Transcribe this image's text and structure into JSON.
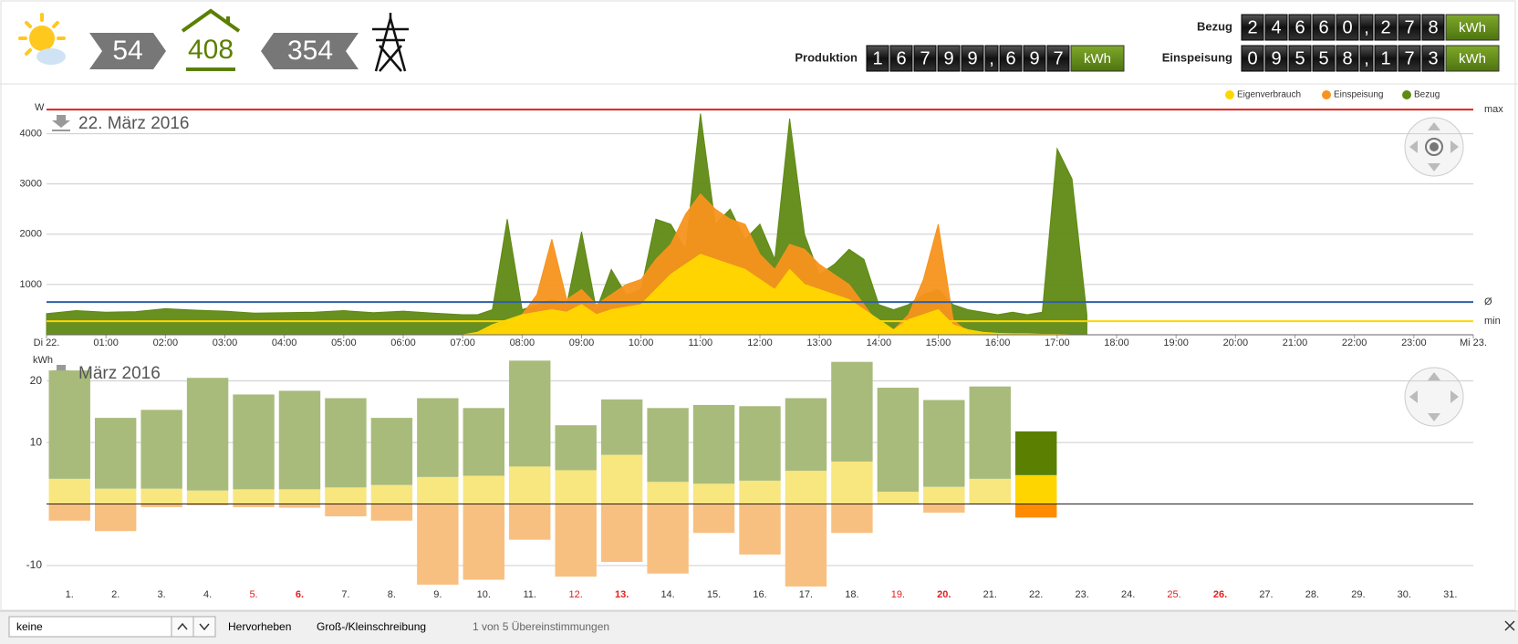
{
  "header": {
    "pv": 54,
    "consumption": 408,
    "grid": 354,
    "counters": [
      {
        "label": "Bezug",
        "digits": [
          "2",
          "4",
          "6",
          "6",
          "0",
          ",",
          "2",
          "7",
          "8"
        ],
        "unit": "kWh"
      },
      {
        "label": "Produktion",
        "digits": [
          "1",
          "6",
          "7",
          "9",
          "9",
          ",",
          "6",
          "9",
          "7"
        ],
        "unit": "kWh"
      },
      {
        "label": "Einspeisung",
        "digits": [
          "0",
          "9",
          "5",
          "5",
          "8",
          ",",
          "1",
          "7",
          "3"
        ],
        "unit": "kWh"
      }
    ]
  },
  "chart_data": [
    {
      "type": "area",
      "title": "22. März 2016",
      "y_label": "W",
      "x": [
        0,
        0.5,
        1,
        1.5,
        2,
        2.5,
        3,
        3.5,
        4,
        4.5,
        5,
        5.5,
        6,
        6.5,
        7,
        7.25,
        7.5,
        7.75,
        8,
        8.25,
        8.5,
        8.75,
        9,
        9.25,
        9.5,
        9.75,
        10,
        10.25,
        10.5,
        10.75,
        11,
        11.25,
        11.5,
        11.75,
        12,
        12.25,
        12.5,
        12.75,
        13,
        13.25,
        13.5,
        13.75,
        14,
        14.25,
        14.5,
        14.75,
        15,
        15.25,
        15.5,
        15.75,
        16,
        16.25,
        16.5,
        16.75,
        17,
        17.25,
        17.5
      ],
      "xlim": [
        0,
        24
      ],
      "xticks": [
        {
          "value": 0,
          "label": "Di 22."
        },
        {
          "value": 1,
          "label": "01:00"
        },
        {
          "value": 2,
          "label": "02:00"
        },
        {
          "value": 3,
          "label": "03:00"
        },
        {
          "value": 4,
          "label": "04:00"
        },
        {
          "value": 5,
          "label": "05:00"
        },
        {
          "value": 6,
          "label": "06:00"
        },
        {
          "value": 7,
          "label": "07:00"
        },
        {
          "value": 8,
          "label": "08:00"
        },
        {
          "value": 9,
          "label": "09:00"
        },
        {
          "value": 10,
          "label": "10:00"
        },
        {
          "value": 11,
          "label": "11:00"
        },
        {
          "value": 12,
          "label": "12:00"
        },
        {
          "value": 13,
          "label": "13:00"
        },
        {
          "value": 14,
          "label": "14:00"
        },
        {
          "value": 15,
          "label": "15:00"
        },
        {
          "value": 16,
          "label": "16:00"
        },
        {
          "value": 17,
          "label": "17:00"
        },
        {
          "value": 18,
          "label": "18:00"
        },
        {
          "value": 19,
          "label": "19:00"
        },
        {
          "value": 20,
          "label": "20:00"
        },
        {
          "value": 21,
          "label": "21:00"
        },
        {
          "value": 22,
          "label": "22:00"
        },
        {
          "value": 23,
          "label": "23:00"
        },
        {
          "value": 24,
          "label": "Mi 23."
        }
      ],
      "ylim": [
        0,
        4700
      ],
      "yticks": [
        1000,
        2000,
        3000,
        4000
      ],
      "grid": true,
      "legend": "top-right",
      "series": [
        {
          "name": "Eigenverbrauch",
          "color": "#ffd700",
          "values": [
            0,
            0,
            0,
            0,
            0,
            0,
            0,
            0,
            0,
            0,
            0,
            0,
            0,
            0,
            0,
            50,
            200,
            300,
            400,
            450,
            500,
            450,
            600,
            400,
            500,
            550,
            600,
            900,
            1200,
            1400,
            1600,
            1500,
            1400,
            1300,
            1100,
            900,
            1300,
            1000,
            900,
            800,
            700,
            500,
            300,
            100,
            300,
            400,
            500,
            200,
            100,
            50,
            30,
            20,
            20,
            10,
            10,
            0,
            0
          ]
        },
        {
          "name": "Einspeisung",
          "color": "#f7931e",
          "values": [
            0,
            0,
            0,
            0,
            0,
            0,
            0,
            0,
            0,
            0,
            0,
            0,
            0,
            0,
            0,
            0,
            100,
            200,
            400,
            800,
            1900,
            700,
            900,
            600,
            800,
            1000,
            1100,
            1500,
            1800,
            2400,
            2800,
            2500,
            2300,
            2200,
            1600,
            1300,
            1800,
            1700,
            1400,
            1200,
            1000,
            600,
            200,
            100,
            400,
            1100,
            2200,
            300,
            50,
            0,
            0,
            0,
            0,
            0,
            0,
            0,
            0
          ]
        },
        {
          "name": "Bezug",
          "color": "#5f8a14",
          "values": [
            420,
            480,
            450,
            460,
            520,
            490,
            470,
            430,
            440,
            450,
            480,
            440,
            470,
            430,
            400,
            400,
            500,
            2300,
            500,
            600,
            700,
            600,
            2050,
            500,
            1300,
            800,
            900,
            2300,
            2200,
            1700,
            4400,
            2200,
            2500,
            1900,
            2200,
            1500,
            4300,
            2000,
            1200,
            1400,
            1700,
            1500,
            600,
            500,
            600,
            800,
            900,
            600,
            500,
            450,
            400,
            450,
            400,
            450,
            3700,
            3100,
            400
          ]
        }
      ],
      "reference_lines": [
        {
          "label": "max",
          "value": 4480,
          "color": "#d9261c"
        },
        {
          "label": "Ø",
          "value": 650,
          "color": "#2f5fa8"
        },
        {
          "label": "min",
          "value": 270,
          "color": "#ffd700"
        }
      ]
    },
    {
      "type": "bar",
      "title": "März 2016",
      "y_label": "kWh",
      "stacked": true,
      "categories": [
        "1.",
        "2.",
        "3.",
        "4.",
        "5.",
        "6.",
        "7.",
        "8.",
        "9.",
        "10.",
        "11.",
        "12.",
        "13.",
        "14.",
        "15.",
        "16.",
        "17.",
        "18.",
        "19.",
        "20.",
        "21.",
        "22.",
        "23.",
        "24.",
        "25.",
        "26.",
        "27.",
        "28.",
        "29.",
        "30.",
        "31."
      ],
      "category_colors": [
        "#333",
        "#333",
        "#333",
        "#333",
        "#e02020",
        "#e02020",
        "#333",
        "#333",
        "#333",
        "#333",
        "#333",
        "#e02020",
        "#e02020",
        "#333",
        "#333",
        "#333",
        "#333",
        "#333",
        "#e02020",
        "#e02020",
        "#333",
        "#333",
        "#333",
        "#333",
        "#e02020",
        "#e02020",
        "#333",
        "#333",
        "#333",
        "#333",
        "#333"
      ],
      "category_bold": [
        false,
        false,
        false,
        false,
        false,
        true,
        false,
        false,
        false,
        false,
        false,
        false,
        true,
        false,
        false,
        false,
        false,
        false,
        false,
        true,
        false,
        false,
        false,
        false,
        false,
        true,
        false,
        false,
        false,
        false,
        false
      ],
      "ylim": [
        -13.7,
        23.5
      ],
      "yticks": [
        -10,
        10,
        20
      ],
      "grid": true,
      "current_index": 21,
      "series": [
        {
          "color": "#f8e67f",
          "current_color": "#ffd500",
          "values": [
            4.1,
            2.5,
            2.5,
            2.2,
            2.4,
            2.4,
            2.7,
            3.1,
            4.4,
            4.6,
            6.1,
            5.5,
            8.0,
            3.6,
            3.3,
            3.8,
            5.4,
            6.9,
            2.0,
            2.8,
            4.1,
            4.7,
            null,
            null,
            null,
            null,
            null,
            null,
            null,
            null,
            null
          ]
        },
        {
          "color": "#a8bb7b",
          "current_color": "#5b7f00",
          "values": [
            17.6,
            11.5,
            12.8,
            18.3,
            15.4,
            16.0,
            14.5,
            10.9,
            12.8,
            11.0,
            17.2,
            7.3,
            9.0,
            12.0,
            12.8,
            12.1,
            11.8,
            16.2,
            16.9,
            14.1,
            15.0,
            7.1,
            null,
            null,
            null,
            null,
            null,
            null,
            null,
            null,
            null
          ]
        },
        {
          "color": "#f8c080",
          "current_color": "#ff8c00",
          "values": [
            -2.7,
            -4.4,
            -0.5,
            -0.2,
            -0.5,
            -0.6,
            -2.0,
            -2.7,
            -13.1,
            -12.3,
            -5.8,
            -11.8,
            -9.4,
            -11.3,
            -4.7,
            -8.2,
            -13.4,
            -4.7,
            -0.1,
            -1.4,
            -0.1,
            -2.2,
            null,
            null,
            null,
            null,
            null,
            null,
            null,
            null,
            null
          ]
        }
      ]
    }
  ],
  "find_bar": {
    "input": "keine",
    "buttons": [
      "Hervorheben",
      "Groß-/Kleinschreibung"
    ],
    "status": "1 von 5 Übereinstimmungen"
  }
}
